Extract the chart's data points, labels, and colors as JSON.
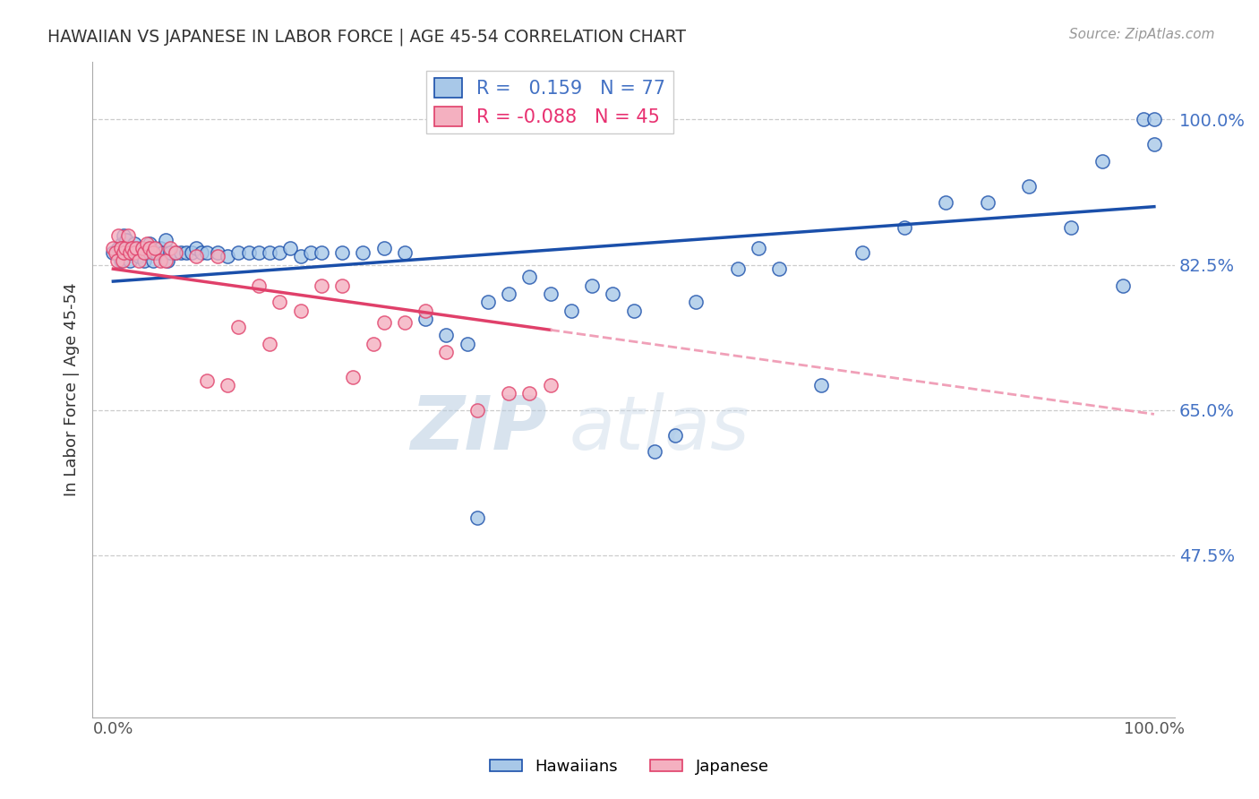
{
  "title": "HAWAIIAN VS JAPANESE IN LABOR FORCE | AGE 45-54 CORRELATION CHART",
  "source_text": "Source: ZipAtlas.com",
  "ylabel": "In Labor Force | Age 45-54",
  "xlim": [
    -0.02,
    1.02
  ],
  "ylim": [
    0.28,
    1.07
  ],
  "yticks": [
    0.475,
    0.65,
    0.825,
    1.0
  ],
  "ytick_labels": [
    "47.5%",
    "65.0%",
    "82.5%",
    "100.0%"
  ],
  "xtick_labels": [
    "0.0%",
    "100.0%"
  ],
  "xticks": [
    0.0,
    1.0
  ],
  "hawaiians_R": 0.159,
  "hawaiians_N": 77,
  "japanese_R": -0.088,
  "japanese_N": 45,
  "hawaiians_color": "#a8c8e8",
  "japanese_color": "#f4b0c0",
  "trend_hawaiians_color": "#1a4faa",
  "trend_japanese_solid_color": "#e0406a",
  "trend_japanese_dashed_color": "#f0a0b8",
  "watermark_zip": "ZIP",
  "watermark_atlas": "atlas",
  "trend_h_x0": 0.0,
  "trend_h_y0": 0.805,
  "trend_h_x1": 1.0,
  "trend_h_y1": 0.895,
  "trend_j_x0": 0.0,
  "trend_j_y0": 0.82,
  "trend_j_solid_end": 0.42,
  "trend_j_dashed_end": 1.0,
  "trend_j_y1": 0.645,
  "hawaiians_x": [
    0.0,
    0.005,
    0.007,
    0.008,
    0.01,
    0.012,
    0.013,
    0.015,
    0.016,
    0.018,
    0.02,
    0.022,
    0.025,
    0.027,
    0.03,
    0.032,
    0.035,
    0.038,
    0.04,
    0.042,
    0.045,
    0.048,
    0.05,
    0.052,
    0.055,
    0.06,
    0.065,
    0.07,
    0.075,
    0.08,
    0.085,
    0.09,
    0.1,
    0.11,
    0.12,
    0.13,
    0.14,
    0.15,
    0.16,
    0.17,
    0.18,
    0.19,
    0.2,
    0.22,
    0.24,
    0.26,
    0.28,
    0.3,
    0.32,
    0.34,
    0.36,
    0.38,
    0.4,
    0.42,
    0.44,
    0.46,
    0.48,
    0.5,
    0.52,
    0.54,
    0.56,
    0.6,
    0.62,
    0.64,
    0.68,
    0.72,
    0.76,
    0.8,
    0.84,
    0.88,
    0.92,
    0.95,
    0.97,
    0.99,
    1.0,
    1.0,
    0.35
  ],
  "hawaiians_y": [
    0.84,
    0.845,
    0.83,
    0.85,
    0.86,
    0.84,
    0.855,
    0.845,
    0.83,
    0.84,
    0.85,
    0.84,
    0.835,
    0.845,
    0.83,
    0.84,
    0.85,
    0.83,
    0.84,
    0.84,
    0.845,
    0.84,
    0.855,
    0.83,
    0.84,
    0.84,
    0.84,
    0.84,
    0.84,
    0.845,
    0.84,
    0.84,
    0.84,
    0.835,
    0.84,
    0.84,
    0.84,
    0.84,
    0.84,
    0.845,
    0.835,
    0.84,
    0.84,
    0.84,
    0.84,
    0.845,
    0.84,
    0.76,
    0.74,
    0.73,
    0.78,
    0.79,
    0.81,
    0.79,
    0.77,
    0.8,
    0.79,
    0.77,
    0.6,
    0.62,
    0.78,
    0.82,
    0.845,
    0.82,
    0.68,
    0.84,
    0.87,
    0.9,
    0.9,
    0.92,
    0.87,
    0.95,
    0.8,
    1.0,
    1.0,
    0.97,
    0.52
  ],
  "japanese_x": [
    0.0,
    0.002,
    0.004,
    0.005,
    0.007,
    0.009,
    0.01,
    0.012,
    0.014,
    0.016,
    0.018,
    0.02,
    0.022,
    0.025,
    0.028,
    0.03,
    0.032,
    0.035,
    0.038,
    0.04,
    0.045,
    0.05,
    0.055,
    0.06,
    0.08,
    0.1,
    0.12,
    0.14,
    0.16,
    0.18,
    0.2,
    0.22,
    0.23,
    0.25,
    0.26,
    0.28,
    0.3,
    0.32,
    0.35,
    0.38,
    0.4,
    0.42,
    0.15,
    0.09,
    0.11
  ],
  "japanese_y": [
    0.845,
    0.84,
    0.83,
    0.86,
    0.845,
    0.83,
    0.84,
    0.845,
    0.86,
    0.84,
    0.845,
    0.84,
    0.845,
    0.83,
    0.845,
    0.84,
    0.85,
    0.845,
    0.84,
    0.845,
    0.83,
    0.83,
    0.845,
    0.84,
    0.835,
    0.835,
    0.75,
    0.8,
    0.78,
    0.77,
    0.8,
    0.8,
    0.69,
    0.73,
    0.755,
    0.755,
    0.77,
    0.72,
    0.65,
    0.67,
    0.67,
    0.68,
    0.73,
    0.685,
    0.68
  ]
}
